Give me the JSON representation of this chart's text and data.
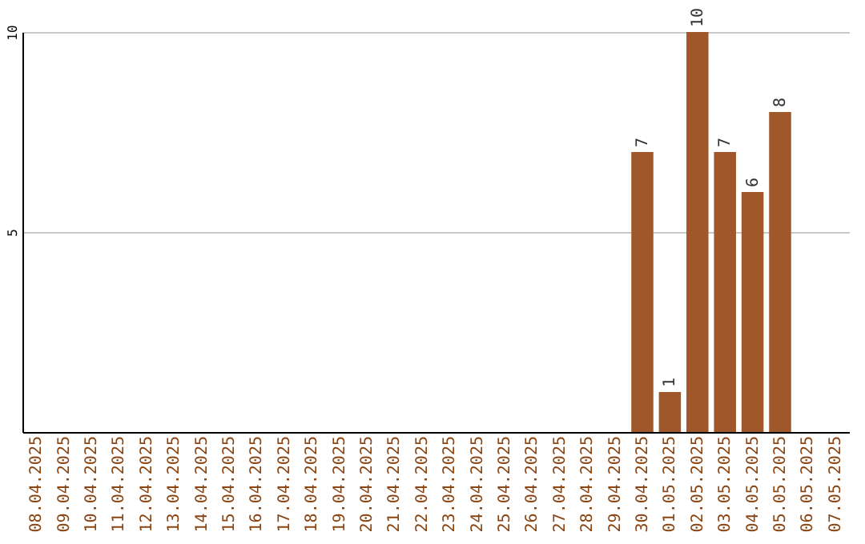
{
  "chart_data": {
    "type": "bar",
    "categories": [
      "08.04.2025",
      "09.04.2025",
      "10.04.2025",
      "11.04.2025",
      "12.04.2025",
      "13.04.2025",
      "14.04.2025",
      "15.04.2025",
      "16.04.2025",
      "17.04.2025",
      "18.04.2025",
      "19.04.2025",
      "20.04.2025",
      "21.04.2025",
      "22.04.2025",
      "23.04.2025",
      "24.04.2025",
      "25.04.2025",
      "26.04.2025",
      "27.04.2025",
      "28.04.2025",
      "29.04.2025",
      "30.04.2025",
      "01.05.2025",
      "02.05.2025",
      "03.05.2025",
      "04.05.2025",
      "05.05.2025",
      "06.05.2025",
      "07.05.2025"
    ],
    "values": [
      null,
      null,
      null,
      null,
      null,
      null,
      null,
      null,
      null,
      null,
      null,
      null,
      null,
      null,
      null,
      null,
      null,
      null,
      null,
      null,
      null,
      null,
      7,
      1,
      10,
      7,
      6,
      8,
      null,
      null
    ],
    "color": "#a0582a",
    "ylim": [
      0,
      10
    ],
    "yticks": [
      5,
      10
    ],
    "grid": "y",
    "data_labels": true
  }
}
